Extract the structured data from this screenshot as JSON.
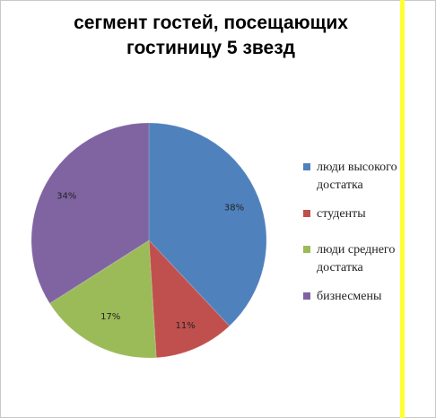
{
  "chart_data": {
    "type": "pie",
    "title": "сегмент гостей, посещающих гостиницу 5 звезд",
    "title_lines": [
      "сегмент гостей, посещающих",
      "гостиницу 5 звезд"
    ],
    "categories": [
      "люди высокого достатка",
      "студенты",
      "люди среднего достатка",
      "бизнесмены"
    ],
    "values": [
      38,
      11,
      17,
      34
    ],
    "labels": [
      "38%",
      "11%",
      "17%",
      "34%"
    ],
    "colors": [
      "#4f81bd",
      "#c0504d",
      "#9bbb59",
      "#8064a2"
    ],
    "legend_position": "right"
  },
  "legend": {
    "items": [
      {
        "label": "люди высокого достатка",
        "color": "#4f81bd"
      },
      {
        "label": "студенты",
        "color": "#c0504d"
      },
      {
        "label": "люди среднего достатка",
        "color": "#9bbb59"
      },
      {
        "label": "бизнесмены",
        "color": "#8064a2"
      }
    ]
  }
}
